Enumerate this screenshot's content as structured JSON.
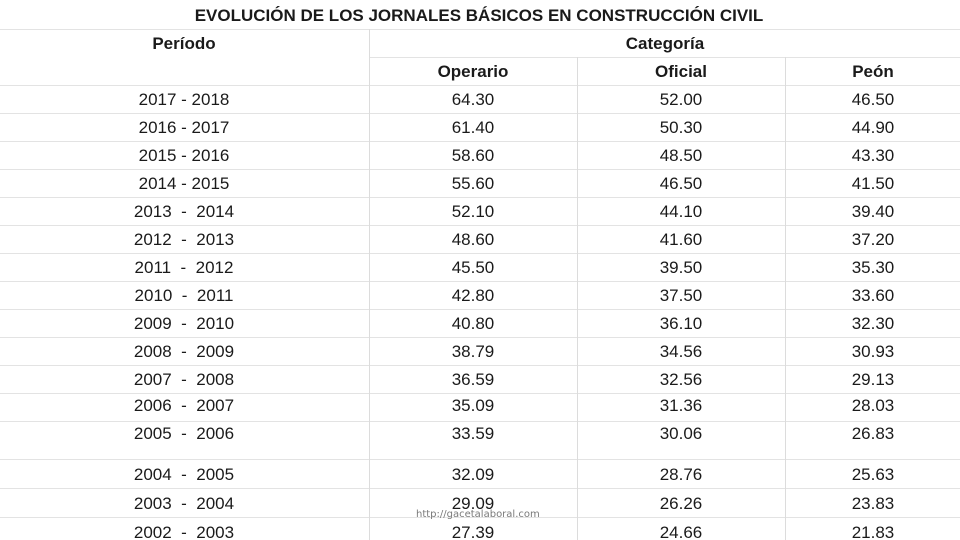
{
  "title": "EVOLUCIÓN DE LOS JORNALES BÁSICOS EN CONSTRUCCIÓN CIVIL",
  "header": {
    "periodo": "Período",
    "categoria": "Categoría",
    "columns": [
      "Operario",
      "Oficial",
      "Peón"
    ]
  },
  "rows": [
    {
      "periodo": "2017 - 2018",
      "operario": "64.30",
      "oficial": "52.00",
      "peon": "46.50"
    },
    {
      "periodo": "2016 - 2017",
      "operario": "61.40",
      "oficial": "50.30",
      "peon": "44.90"
    },
    {
      "periodo": "2015 - 2016",
      "operario": "58.60",
      "oficial": "48.50",
      "peon": "43.30"
    },
    {
      "periodo": "2014 - 2015",
      "operario": "55.60",
      "oficial": "46.50",
      "peon": "41.50"
    },
    {
      "periodo": "2013  -  2014",
      "operario": "52.10",
      "oficial": "44.10",
      "peon": "39.40"
    },
    {
      "periodo": "2012  -  2013",
      "operario": "48.60",
      "oficial": "41.60",
      "peon": "37.20"
    },
    {
      "periodo": "2011  -  2012",
      "operario": "45.50",
      "oficial": "39.50",
      "peon": "35.30"
    },
    {
      "periodo": "2010  -  2011",
      "operario": "42.80",
      "oficial": "37.50",
      "peon": "33.60"
    },
    {
      "periodo": "2009  -  2010",
      "operario": "40.80",
      "oficial": "36.10",
      "peon": "32.30"
    },
    {
      "periodo": "2008  -  2009",
      "operario": "38.79",
      "oficial": "34.56",
      "peon": "30.93"
    },
    {
      "periodo": "2007  -  2008",
      "operario": "36.59",
      "oficial": "32.56",
      "peon": "29.13"
    },
    {
      "periodo": "2006  -  2007",
      "operario": "35.09",
      "oficial": "31.36",
      "peon": "28.03"
    },
    {
      "periodo": "2005  -  2006",
      "operario": "33.59",
      "oficial": "30.06",
      "peon": "26.83"
    },
    {
      "periodo": "2004  -  2005",
      "operario": "32.09",
      "oficial": "28.76",
      "peon": "25.63"
    },
    {
      "periodo": "2003  -  2004",
      "operario": "29.09",
      "oficial": "26.26",
      "peon": "23.83"
    },
    {
      "periodo": "2002  -  2003",
      "operario": "27.39",
      "oficial": "24.66",
      "peon": "21.83"
    }
  ],
  "watermark": "http://gacetalaboral.com"
}
